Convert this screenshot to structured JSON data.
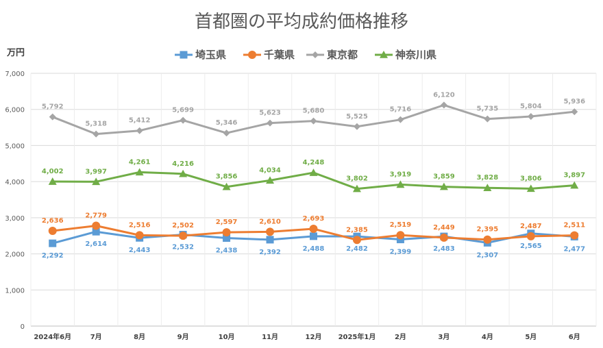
{
  "chart_data": {
    "type": "line",
    "title": "首都圏の平均成約価格推移",
    "ylabel": "万円",
    "xlabel": "",
    "ylim": [
      0,
      7000
    ],
    "yticks": [
      0,
      1000,
      2000,
      3000,
      4000,
      5000,
      6000,
      7000
    ],
    "ytick_labels": [
      "0",
      "1,000",
      "2,000",
      "3,000",
      "4,000",
      "5,000",
      "6,000",
      "7,000"
    ],
    "grid": true,
    "legend_position": "top-center",
    "categories": [
      "2024年6月",
      "7月",
      "8月",
      "9月",
      "10月",
      "11月",
      "12月",
      "2025年1月",
      "2月",
      "3月",
      "4月",
      "5月",
      "6月"
    ],
    "series": [
      {
        "name": "埼玉県",
        "color": "#5B9BD5",
        "marker": "square",
        "values": [
          2292,
          2614,
          2443,
          2532,
          2438,
          2392,
          2488,
          2482,
          2399,
          2483,
          2307,
          2565,
          2477
        ],
        "labels": [
          "2,292",
          "2,614",
          "2,443",
          "2,532",
          "2,438",
          "2,392",
          "2,488",
          "2,482",
          "2,399",
          "2,483",
          "2,307",
          "2,565",
          "2,477"
        ],
        "label_side": [
          "below",
          "below",
          "below",
          "below",
          "below",
          "below",
          "below",
          "below",
          "below",
          "below",
          "below",
          "below",
          "below"
        ]
      },
      {
        "name": "千葉県",
        "color": "#ED7D31",
        "marker": "circle",
        "values": [
          2636,
          2779,
          2516,
          2502,
          2597,
          2610,
          2693,
          2385,
          2519,
          2449,
          2395,
          2487,
          2511
        ],
        "labels": [
          "2,636",
          "2,779",
          "2,516",
          "2,502",
          "2,597",
          "2,610",
          "2,693",
          "2,385",
          "2,519",
          "2,449",
          "2,395",
          "2,487",
          "2,511"
        ],
        "label_side": [
          "above",
          "above",
          "above",
          "above",
          "above",
          "above",
          "above",
          "above",
          "above",
          "above",
          "above",
          "above",
          "above"
        ]
      },
      {
        "name": "東京都",
        "color": "#A5A5A5",
        "marker": "diamond",
        "values": [
          5792,
          5318,
          5412,
          5699,
          5346,
          5623,
          5680,
          5525,
          5716,
          6120,
          5735,
          5804,
          5936
        ],
        "labels": [
          "5,792",
          "5,318",
          "5,412",
          "5,699",
          "5,346",
          "5,623",
          "5,680",
          "5,525",
          "5,716",
          "6,120",
          "5,735",
          "5,804",
          "5,936"
        ],
        "label_side": [
          "above",
          "above",
          "above",
          "above",
          "above",
          "above",
          "above",
          "above",
          "above",
          "above",
          "above",
          "above",
          "above"
        ]
      },
      {
        "name": "神奈川県",
        "color": "#70AD47",
        "marker": "triangle",
        "values": [
          4002,
          3997,
          4261,
          4216,
          3856,
          4034,
          4248,
          3802,
          3919,
          3859,
          3828,
          3806,
          3897
        ],
        "labels": [
          "4,002",
          "3,997",
          "4,261",
          "4,216",
          "3,856",
          "4,034",
          "4,248",
          "3,802",
          "3,919",
          "3,859",
          "3,828",
          "3,806",
          "3,897"
        ],
        "label_side": [
          "above",
          "above",
          "above",
          "above",
          "above",
          "above",
          "above",
          "above",
          "above",
          "above",
          "above",
          "above",
          "above"
        ]
      }
    ]
  }
}
